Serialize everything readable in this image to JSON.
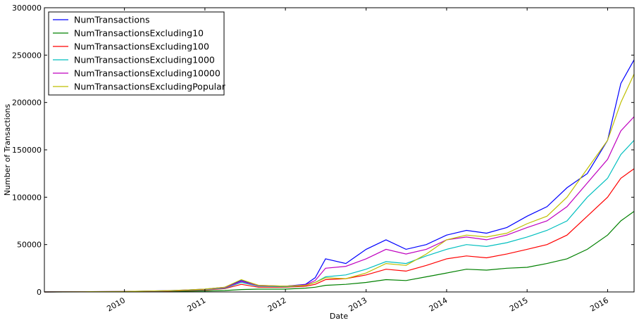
{
  "chart_data": {
    "type": "line",
    "title": "",
    "xlabel": "Date",
    "ylabel": "Number of Transactions",
    "ylim": [
      0,
      300000
    ],
    "xlim": [
      "2009-01-03",
      "2016-04-30"
    ],
    "grid": false,
    "legend_position": "top-left",
    "yticks": [
      "0",
      "50000",
      "100000",
      "150000",
      "200000",
      "250000",
      "300000"
    ],
    "xticks": [
      "2010",
      "2011",
      "2012",
      "2013",
      "2014",
      "2015",
      "2016"
    ],
    "series": [
      {
        "name": "NumTransactions",
        "color": "#0000ff",
        "x": [
          "2009-01-03",
          "2009-07-01",
          "2010-01-01",
          "2010-05-01",
          "2010-08-01",
          "2010-10-01",
          "2011-01-01",
          "2011-04-01",
          "2011-06-15",
          "2011-09-01",
          "2012-01-01",
          "2012-04-01",
          "2012-05-15",
          "2012-07-01",
          "2012-10-01",
          "2013-01-01",
          "2013-04-01",
          "2013-07-01",
          "2013-10-01",
          "2014-01-01",
          "2014-04-01",
          "2014-07-01",
          "2014-10-01",
          "2015-01-01",
          "2015-04-01",
          "2015-07-01",
          "2015-10-01",
          "2016-01-01",
          "2016-03-01",
          "2016-04-30"
        ],
        "y": [
          0,
          200,
          500,
          1000,
          1500,
          2000,
          3000,
          5000,
          12000,
          7000,
          6000,
          8000,
          15000,
          35000,
          30000,
          45000,
          55000,
          45000,
          50000,
          60000,
          65000,
          62000,
          68000,
          80000,
          90000,
          110000,
          125000,
          160000,
          220000,
          245000
        ]
      },
      {
        "name": "NumTransactionsExcluding10",
        "color": "#008000",
        "x": [
          "2009-01-03",
          "2009-07-01",
          "2010-01-01",
          "2010-05-01",
          "2010-08-01",
          "2010-10-01",
          "2011-01-01",
          "2011-04-01",
          "2011-06-15",
          "2011-09-01",
          "2012-01-01",
          "2012-04-01",
          "2012-05-15",
          "2012-07-01",
          "2012-10-01",
          "2013-01-01",
          "2013-04-01",
          "2013-07-01",
          "2013-10-01",
          "2014-01-01",
          "2014-04-01",
          "2014-07-01",
          "2014-10-01",
          "2015-01-01",
          "2015-04-01",
          "2015-07-01",
          "2015-10-01",
          "2016-01-01",
          "2016-03-01",
          "2016-04-30"
        ],
        "y": [
          0,
          100,
          200,
          400,
          600,
          800,
          1000,
          1500,
          2500,
          3000,
          3000,
          4000,
          5000,
          7000,
          8000,
          10000,
          13000,
          12000,
          16000,
          20000,
          24000,
          23000,
          25000,
          26000,
          30000,
          35000,
          45000,
          60000,
          75000,
          85000
        ]
      },
      {
        "name": "NumTransactionsExcluding100",
        "color": "#ff0000",
        "x": [
          "2009-01-03",
          "2009-07-01",
          "2010-01-01",
          "2010-05-01",
          "2010-08-01",
          "2010-10-01",
          "2011-01-01",
          "2011-04-01",
          "2011-06-15",
          "2011-09-01",
          "2012-01-01",
          "2012-04-01",
          "2012-05-15",
          "2012-07-01",
          "2012-10-01",
          "2013-01-01",
          "2013-04-01",
          "2013-07-01",
          "2013-10-01",
          "2014-01-01",
          "2014-04-01",
          "2014-07-01",
          "2014-10-01",
          "2015-01-01",
          "2015-04-01",
          "2015-07-01",
          "2015-10-01",
          "2016-01-01",
          "2016-03-01",
          "2016-04-30"
        ],
        "y": [
          0,
          150,
          300,
          700,
          1000,
          1500,
          2000,
          3500,
          8000,
          5000,
          5000,
          6000,
          8000,
          13000,
          14000,
          18000,
          24000,
          22000,
          28000,
          35000,
          38000,
          36000,
          40000,
          45000,
          50000,
          60000,
          80000,
          100000,
          120000,
          130000
        ]
      },
      {
        "name": "NumTransactionsExcluding1000",
        "color": "#00bfbf",
        "x": [
          "2009-01-03",
          "2009-07-01",
          "2010-01-01",
          "2010-05-01",
          "2010-08-01",
          "2010-10-01",
          "2011-01-01",
          "2011-04-01",
          "2011-06-15",
          "2011-09-01",
          "2012-01-01",
          "2012-04-01",
          "2012-05-15",
          "2012-07-01",
          "2012-10-01",
          "2013-01-01",
          "2013-04-01",
          "2013-07-01",
          "2013-10-01",
          "2014-01-01",
          "2014-04-01",
          "2014-07-01",
          "2014-10-01",
          "2015-01-01",
          "2015-04-01",
          "2015-07-01",
          "2015-10-01",
          "2016-01-01",
          "2016-03-01",
          "2016-04-30"
        ],
        "y": [
          0,
          180,
          400,
          800,
          1200,
          1800,
          2500,
          4000,
          10000,
          6000,
          5500,
          7000,
          10000,
          16000,
          18000,
          24000,
          32000,
          30000,
          38000,
          45000,
          50000,
          48000,
          52000,
          58000,
          65000,
          75000,
          100000,
          120000,
          145000,
          160000
        ]
      },
      {
        "name": "NumTransactionsExcluding10000",
        "color": "#bf00bf",
        "x": [
          "2009-01-03",
          "2009-07-01",
          "2010-01-01",
          "2010-05-01",
          "2010-08-01",
          "2010-10-01",
          "2011-01-01",
          "2011-04-01",
          "2011-06-15",
          "2011-09-01",
          "2012-01-01",
          "2012-04-01",
          "2012-05-15",
          "2012-07-01",
          "2012-10-01",
          "2013-01-01",
          "2013-04-01",
          "2013-07-01",
          "2013-10-01",
          "2014-01-01",
          "2014-04-01",
          "2014-07-01",
          "2014-10-01",
          "2015-01-01",
          "2015-04-01",
          "2015-07-01",
          "2015-10-01",
          "2016-01-01",
          "2016-03-01",
          "2016-04-30"
        ],
        "y": [
          0,
          190,
          450,
          900,
          1300,
          1900,
          2800,
          4500,
          11000,
          6500,
          6000,
          7500,
          12000,
          25000,
          27000,
          35000,
          45000,
          40000,
          45000,
          55000,
          58000,
          55000,
          60000,
          68000,
          75000,
          90000,
          115000,
          140000,
          170000,
          185000
        ]
      },
      {
        "name": "NumTransactionsExcludingPopular",
        "color": "#bfbf00",
        "x": [
          "2009-01-03",
          "2009-07-01",
          "2010-01-01",
          "2010-05-01",
          "2010-08-01",
          "2010-10-01",
          "2011-01-01",
          "2011-04-01",
          "2011-06-15",
          "2011-09-01",
          "2012-01-01",
          "2012-04-01",
          "2012-05-15",
          "2012-07-01",
          "2012-10-01",
          "2013-01-01",
          "2013-04-01",
          "2013-07-01",
          "2013-10-01",
          "2014-01-01",
          "2014-04-01",
          "2014-07-01",
          "2014-10-01",
          "2015-01-01",
          "2015-04-01",
          "2015-07-01",
          "2015-10-01",
          "2016-01-01",
          "2016-03-01",
          "2016-04-30"
        ],
        "y": [
          0,
          190,
          480,
          950,
          1400,
          2000,
          3000,
          5000,
          13000,
          7000,
          6000,
          7000,
          10000,
          15000,
          14000,
          20000,
          30000,
          28000,
          40000,
          55000,
          60000,
          58000,
          62000,
          72000,
          80000,
          100000,
          130000,
          160000,
          200000,
          230000
        ]
      }
    ]
  }
}
